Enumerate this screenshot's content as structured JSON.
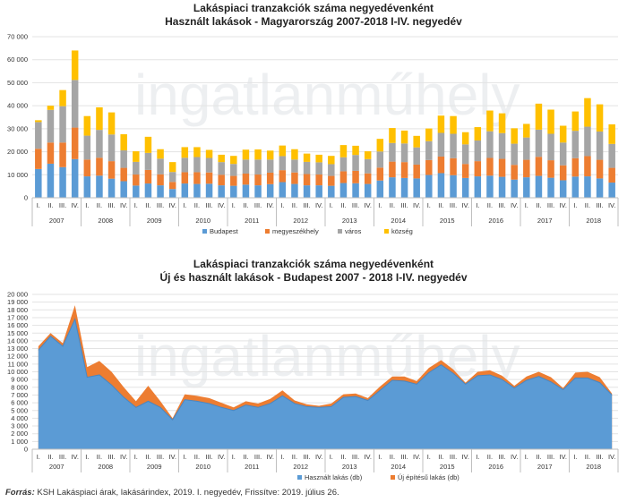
{
  "source": {
    "label": "Forrás:",
    "text": "KSH Lakáspiaci árak, lakásárindex, 2019. I. negyedév, Frissítve: 2019. július 26."
  },
  "watermark": "ingatlanműhely",
  "colors": {
    "budapest": "#5b9bd5",
    "megyeszekhely": "#ed7d31",
    "varos": "#a5a5a5",
    "kozseg": "#ffc000",
    "hasznalt": "#5b9bd5",
    "uj": "#ed7d31"
  },
  "chart_data": [
    {
      "type": "bar",
      "stacked": true,
      "title": "Lakáspiaci tranzakciók száma negyedévenként",
      "subtitle": "Használt lakások - Magyarország 2007-2018 I-IV. negyedév",
      "quarters": [
        "I.",
        "II.",
        "III.",
        "IV."
      ],
      "years": [
        "2007",
        "2008",
        "2009",
        "2010",
        "2011",
        "2012",
        "2013",
        "2014",
        "2015",
        "2016",
        "2017",
        "2018"
      ],
      "ylim": [
        0,
        70000
      ],
      "yticks": [
        0,
        10000,
        20000,
        30000,
        40000,
        50000,
        60000,
        70000
      ],
      "ytick_labels": [
        "0",
        "10 000",
        "20 000",
        "30 000",
        "40 000",
        "50 000",
        "60 000",
        "70 000"
      ],
      "grid": true,
      "legend_position": "bottom-center",
      "series": [
        {
          "name": "Budapest",
          "color_key": "budapest",
          "values": [
            12500,
            14800,
            13300,
            16800,
            9300,
            9600,
            8300,
            7200,
            5300,
            6200,
            5400,
            3800,
            6200,
            6000,
            6100,
            5400,
            5200,
            5700,
            5400,
            5900,
            6800,
            6000,
            5400,
            5400,
            5200,
            6400,
            6300,
            6000,
            7500,
            8900,
            8600,
            8400,
            9900,
            10700,
            9800,
            8600,
            9300,
            9600,
            9100,
            7900,
            8900,
            9500,
            8700,
            7600,
            9200,
            9300,
            8400,
            6600
          ]
        },
        {
          "name": "megyeszékhely",
          "color_key": "megyeszekhely",
          "values": [
            8800,
            9200,
            10700,
            13700,
            7300,
            7800,
            7600,
            5800,
            4800,
            5900,
            4800,
            3100,
            4900,
            5100,
            4900,
            4600,
            4300,
            4800,
            4700,
            5000,
            5200,
            5000,
            4900,
            4700,
            4300,
            5100,
            5400,
            4600,
            5600,
            6800,
            6900,
            6000,
            6500,
            7200,
            7400,
            6100,
            6600,
            7700,
            7800,
            6400,
            7600,
            8300,
            7600,
            6500,
            8000,
            8800,
            8100,
            6400
          ]
        },
        {
          "name": "város",
          "color_key": "varos",
          "values": [
            11600,
            14200,
            15800,
            20700,
            10400,
            12100,
            11600,
            7600,
            5500,
            7400,
            6800,
            4300,
            6300,
            6600,
            6300,
            5500,
            5200,
            6100,
            6500,
            5700,
            6100,
            5600,
            5300,
            5300,
            5100,
            6100,
            6900,
            6200,
            7000,
            8100,
            8100,
            7500,
            8200,
            10300,
            10600,
            8500,
            9000,
            11600,
            11200,
            9200,
            9700,
            11800,
            11500,
            9900,
            11900,
            12800,
            12300,
            10400
          ]
        },
        {
          "name": "község",
          "color_key": "kozseg",
          "values": [
            800,
            1800,
            7000,
            12800,
            8500,
            9800,
            9600,
            7000,
            4600,
            7000,
            4100,
            4300,
            4600,
            4300,
            3500,
            3200,
            3500,
            4300,
            4400,
            3900,
            4600,
            4500,
            3600,
            3300,
            3600,
            5300,
            4000,
            3400,
            5500,
            6500,
            5600,
            5000,
            5500,
            7500,
            7700,
            5300,
            5800,
            9000,
            8600,
            6700,
            5900,
            11300,
            10500,
            7300,
            8400,
            12400,
            11800,
            8500
          ]
        }
      ]
    },
    {
      "type": "area",
      "stacked": true,
      "title": "Lakáspiaci tranzakciók száma negyedévenként",
      "subtitle": "Új és használt lakások - Budapest 2007 - 2018 I-IV. negyedév",
      "quarters": [
        "I.",
        "II.",
        "III.",
        "IV."
      ],
      "years": [
        "2007",
        "2008",
        "2009",
        "2010",
        "2011",
        "2012",
        "2013",
        "2014",
        "2015",
        "2016",
        "2017",
        "2018"
      ],
      "ylim": [
        0,
        20000
      ],
      "yticks": [
        0,
        1000,
        2000,
        3000,
        4000,
        5000,
        6000,
        7000,
        8000,
        9000,
        10000,
        11000,
        12000,
        13000,
        14000,
        15000,
        16000,
        17000,
        18000,
        19000,
        20000
      ],
      "ytick_labels": [
        "0",
        "1 000",
        "2 000",
        "3 000",
        "4 000",
        "5 000",
        "6 000",
        "7 000",
        "8 000",
        "9 000",
        "10 000",
        "11 000",
        "12 000",
        "13 000",
        "14 000",
        "15 000",
        "16 000",
        "17 000",
        "18 000",
        "19 000",
        "20 000"
      ],
      "grid": true,
      "legend_position": "bottom-right",
      "series": [
        {
          "name": "Használt lakás (db)",
          "color_key": "hasznalt",
          "values": [
            12800,
            14600,
            13300,
            16800,
            9300,
            9600,
            8300,
            6700,
            5400,
            6200,
            5400,
            3800,
            6400,
            6200,
            5900,
            5400,
            5000,
            5700,
            5400,
            5900,
            6900,
            5900,
            5500,
            5400,
            5500,
            6700,
            6800,
            6300,
            7600,
            8900,
            8800,
            8400,
            9900,
            10900,
            9800,
            8400,
            9500,
            9600,
            9000,
            7900,
            8900,
            9400,
            8700,
            7700,
            9200,
            9200,
            8600,
            7000
          ]
        },
        {
          "name": "Új építésű lakás (db)",
          "color_key": "uj",
          "values": [
            500,
            400,
            400,
            1800,
            1300,
            1800,
            1700,
            1300,
            800,
            2000,
            800,
            200,
            700,
            700,
            700,
            600,
            400,
            500,
            500,
            600,
            700,
            400,
            300,
            200,
            400,
            400,
            400,
            300,
            500,
            500,
            600,
            400,
            600,
            600,
            500,
            200,
            500,
            600,
            500,
            300,
            500,
            600,
            600,
            200,
            700,
            800,
            700,
            200
          ]
        }
      ]
    }
  ]
}
